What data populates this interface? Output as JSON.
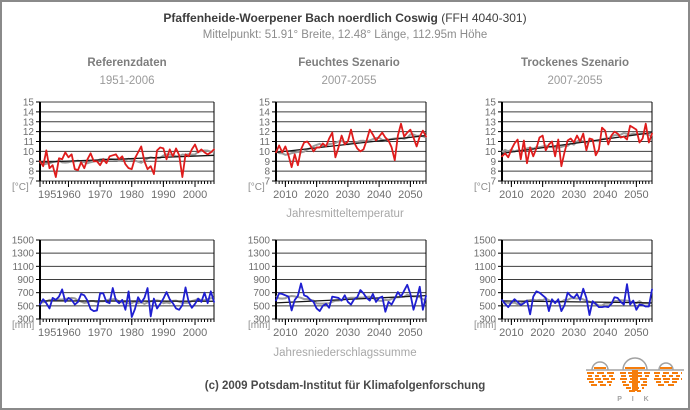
{
  "page": {
    "title_bold": "Pfaffenheide-Woerpener Bach noerdlich Coswig",
    "title_suffix": " (FFH 4040-301)",
    "subtitle": "Mittelpunkt: 51.91° Breite, 12.48° Länge, 112.95m Höhe",
    "row1_caption": "Jahresmitteltemperatur",
    "row2_caption": "Jahresniederschlagssumme",
    "footer": "(c) 2009 Potsdam-Institut für Klimafolgenforschung",
    "logo_text": "P I K"
  },
  "columns": [
    {
      "title": "Referenzdaten",
      "period": "1951-2006"
    },
    {
      "title": "Feuchtes Szenario",
      "period": "2007-2055"
    },
    {
      "title": "Trockenes Szenario",
      "period": "2007-2055"
    }
  ],
  "colors": {
    "red": "#df1c1c",
    "blue": "#1f1fd0",
    "trend": "#161616",
    "smooth": "#9c9c9c",
    "grid": "#3f3f3f",
    "axis": "#000000",
    "tick_label": "#6e6e6e",
    "unit_label": "#8c8c8c",
    "logo_orange": "#f57d0c",
    "logo_gray": "#a2a2a2"
  },
  "chart_data": [
    {
      "name": "referenzdaten-jahresmitteltemperatur",
      "type": "line",
      "title": "Referenzdaten 1951-2006",
      "ylabel": "Jahresmitteltemperatur",
      "unit": "[°C]",
      "x_start": 1951,
      "x_end": 2006,
      "x_step": 1,
      "ylim": [
        7,
        15
      ],
      "yticks": [
        7,
        8,
        9,
        10,
        11,
        12,
        13,
        14,
        15
      ],
      "xticks": [
        1951,
        1960,
        1970,
        1980,
        1990,
        2000
      ],
      "series_color": "red",
      "values": [
        9.0,
        8.5,
        10.1,
        8.3,
        8.6,
        7.4,
        9.3,
        9.2,
        9.9,
        9.4,
        9.7,
        8.2,
        8.1,
        8.9,
        8.3,
        9.2,
        9.8,
        9.0,
        9.0,
        8.6,
        9.2,
        8.8,
        9.5,
        9.6,
        9.7,
        9.2,
        9.5,
        8.7,
        8.3,
        8.2,
        9.3,
        9.9,
        10.5,
        9.0,
        8.2,
        8.5,
        7.7,
        10.1,
        10.4,
        10.3,
        9.2,
        10.2,
        9.5,
        10.3,
        9.6,
        7.4,
        9.7,
        9.5,
        10.2,
        10.7,
        9.9,
        10.2,
        9.9,
        9.7,
        9.9,
        10.2
      ],
      "trend": [
        8.9,
        9.6
      ]
    },
    {
      "name": "feuchtes-szenario-jahresmitteltemperatur",
      "type": "line",
      "title": "Feuchtes Szenario 2007-2055",
      "ylabel": "Jahresmitteltemperatur",
      "unit": "[°C]",
      "x_start": 2007,
      "x_end": 2055,
      "x_step": 1,
      "ylim": [
        7,
        15
      ],
      "yticks": [
        7,
        8,
        9,
        10,
        11,
        12,
        13,
        14,
        15
      ],
      "xticks": [
        2010,
        2020,
        2030,
        2040,
        2050
      ],
      "series_color": "red",
      "values": [
        9.9,
        10.6,
        9.9,
        10.5,
        9.6,
        8.4,
        9.7,
        8.6,
        10.2,
        10.9,
        11.0,
        10.6,
        10.0,
        10.4,
        10.4,
        10.8,
        10.5,
        11.3,
        11.9,
        9.4,
        10.4,
        11.6,
        10.7,
        11.0,
        12.2,
        10.9,
        10.3,
        10.0,
        10.2,
        11.1,
        12.2,
        11.7,
        11.1,
        11.5,
        11.9,
        11.4,
        11.1,
        10.4,
        9.1,
        11.6,
        12.8,
        11.5,
        11.9,
        12.2,
        11.4,
        10.5,
        11.5,
        12.1,
        11.5
      ],
      "trend": [
        9.9,
        11.6
      ]
    },
    {
      "name": "trockenes-szenario-jahresmitteltemperatur",
      "type": "line",
      "title": "Trockenes Szenario 2007-2055",
      "ylabel": "Jahresmitteltemperatur",
      "unit": "[°C]",
      "x_start": 2007,
      "x_end": 2055,
      "x_step": 1,
      "ylim": [
        7,
        15
      ],
      "yticks": [
        7,
        8,
        9,
        10,
        11,
        12,
        13,
        14,
        15
      ],
      "xticks": [
        2010,
        2020,
        2030,
        2040,
        2050
      ],
      "series_color": "red",
      "values": [
        9.5,
        9.8,
        9.4,
        10.2,
        10.8,
        11.2,
        9.2,
        11.1,
        8.8,
        10.4,
        9.5,
        10.3,
        11.4,
        11.6,
        10.1,
        10.7,
        11.0,
        9.5,
        11.2,
        8.5,
        9.9,
        11.1,
        11.3,
        10.9,
        11.6,
        11.0,
        11.8,
        10.1,
        11.3,
        11.2,
        9.6,
        10.2,
        12.4,
        12.1,
        10.7,
        11.6,
        12.0,
        11.8,
        11.4,
        11.5,
        11.2,
        12.6,
        12.4,
        12.2,
        10.9,
        11.3,
        12.8,
        10.9,
        11.8
      ],
      "trend": [
        9.8,
        11.9
      ]
    },
    {
      "name": "referenzdaten-jahresniederschlagssumme",
      "type": "line",
      "title": "Referenzdaten 1951-2006",
      "ylabel": "Jahresniederschlagssumme",
      "unit": "[mm]",
      "x_start": 1951,
      "x_end": 2006,
      "x_step": 1,
      "ylim": [
        300,
        1500
      ],
      "yticks": [
        300,
        500,
        700,
        900,
        1100,
        1300,
        1500
      ],
      "xticks": [
        1951,
        1960,
        1970,
        1980,
        1990,
        2000
      ],
      "series_color": "blue",
      "values": [
        520,
        600,
        540,
        460,
        620,
        590,
        640,
        750,
        560,
        620,
        590,
        520,
        560,
        680,
        660,
        580,
        450,
        420,
        430,
        690,
        690,
        560,
        540,
        770,
        580,
        540,
        590,
        440,
        720,
        330,
        450,
        630,
        550,
        620,
        770,
        340,
        610,
        460,
        530,
        610,
        710,
        600,
        540,
        460,
        440,
        510,
        780,
        560,
        470,
        530,
        610,
        560,
        700,
        540,
        720,
        560
      ],
      "trend": [
        575,
        570
      ]
    },
    {
      "name": "feuchtes-szenario-jahresniederschlagssumme",
      "type": "line",
      "title": "Feuchtes Szenario 2007-2055",
      "ylabel": "Jahresniederschlagssumme",
      "unit": "[mm]",
      "x_start": 2007,
      "x_end": 2055,
      "x_step": 1,
      "ylim": [
        300,
        1500
      ],
      "yticks": [
        300,
        500,
        700,
        900,
        1100,
        1300,
        1500
      ],
      "xticks": [
        2010,
        2020,
        2030,
        2040,
        2050
      ],
      "series_color": "blue",
      "values": [
        580,
        690,
        680,
        660,
        640,
        430,
        590,
        650,
        840,
        660,
        640,
        590,
        560,
        460,
        420,
        500,
        530,
        470,
        640,
        630,
        620,
        580,
        660,
        560,
        520,
        600,
        630,
        740,
        690,
        620,
        580,
        680,
        560,
        620,
        640,
        410,
        560,
        520,
        610,
        710,
        640,
        730,
        820,
        680,
        440,
        600,
        790,
        440,
        650
      ],
      "trend": [
        545,
        655
      ]
    },
    {
      "name": "trockenes-szenario-jahresniederschlagssumme",
      "type": "line",
      "title": "Trockenes Szenario 2007-2055",
      "ylabel": "Jahresniederschlagssumme",
      "unit": "[mm]",
      "x_start": 2007,
      "x_end": 2055,
      "x_step": 1,
      "ylim": [
        300,
        1500
      ],
      "yticks": [
        300,
        500,
        700,
        900,
        1100,
        1300,
        1500
      ],
      "xticks": [
        2010,
        2020,
        2030,
        2040,
        2050
      ],
      "series_color": "blue",
      "values": [
        590,
        530,
        480,
        550,
        600,
        560,
        510,
        540,
        580,
        370,
        640,
        720,
        700,
        660,
        620,
        420,
        600,
        540,
        600,
        420,
        510,
        700,
        650,
        620,
        680,
        590,
        760,
        620,
        360,
        570,
        530,
        480,
        480,
        490,
        480,
        530,
        630,
        620,
        560,
        520,
        830,
        520,
        580,
        440,
        520,
        510,
        490,
        490,
        750
      ],
      "trend": [
        575,
        545
      ]
    }
  ]
}
